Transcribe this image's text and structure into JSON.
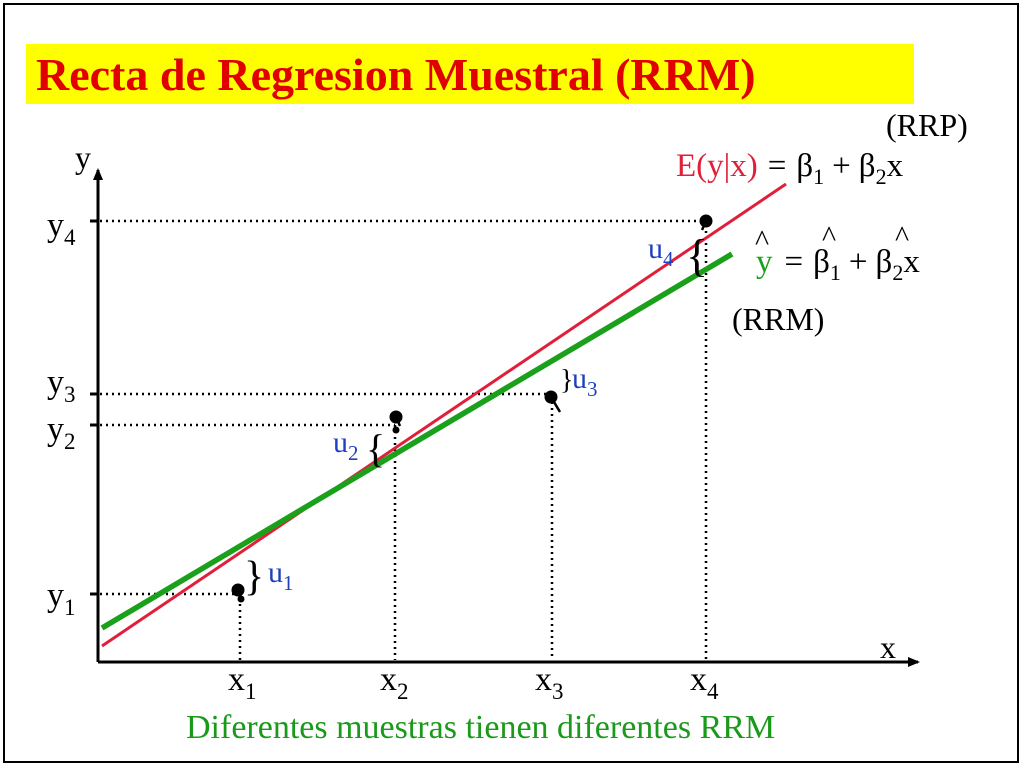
{
  "title": "Recta de Regresion Muestral (RRM)",
  "caption": "Diferentes muestras tienen diferentes RRM",
  "colors": {
    "title_text": "#e00000",
    "title_highlight": "#ffff00",
    "population_line": "#e0203a",
    "sample_line": "#1aa01a",
    "residual_label": "#1f3fbf",
    "caption": "#1a9a1a"
  },
  "axes": {
    "x_label": "x",
    "y_label": "y"
  },
  "observations": [
    {
      "x_label": "x",
      "x_sub": "1",
      "y_label": "y",
      "y_sub": "1",
      "u_label": "u",
      "u_sub": "1"
    },
    {
      "x_label": "x",
      "x_sub": "2",
      "y_label": "y",
      "y_sub": "2",
      "u_label": "u",
      "u_sub": "2"
    },
    {
      "x_label": "x",
      "x_sub": "3",
      "y_label": "y",
      "y_sub": "3",
      "u_label": "u",
      "u_sub": "3"
    },
    {
      "x_label": "x",
      "x_sub": "4",
      "y_label": "y",
      "y_sub": "4",
      "u_label": "u",
      "u_sub": "4"
    }
  ],
  "population_line": {
    "tag": "(RRP)",
    "lhs": "E(y|x)",
    "eq": "=",
    "beta": "β",
    "sub1": "1",
    "plus": "+",
    "sub2": "2",
    "var": "x"
  },
  "sample_line": {
    "tag": "(RRM)",
    "hat": "^",
    "lhs": "y",
    "eq": "=",
    "beta": "β",
    "sub1": "1",
    "plus": "+",
    "sub2": "2",
    "var": "x"
  }
}
